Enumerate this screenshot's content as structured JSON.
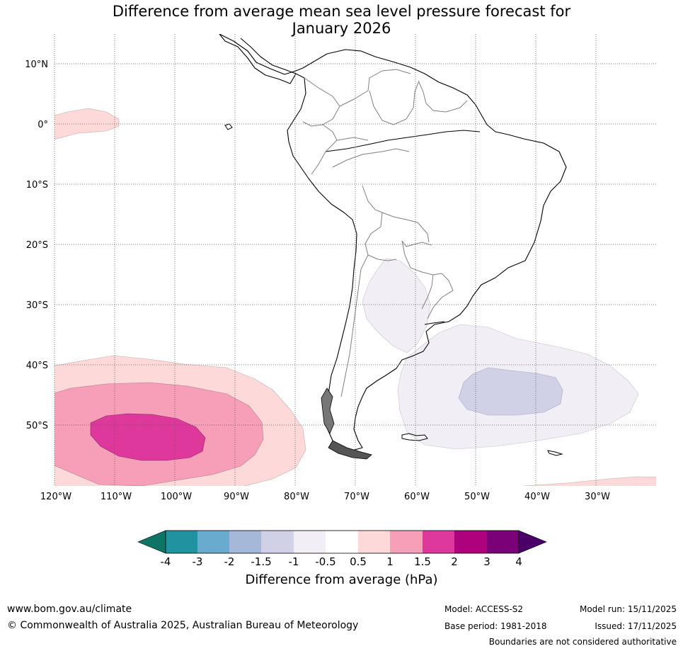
{
  "title_lines": [
    "Difference from average mean sea level pressure forecast for",
    "January 2026"
  ],
  "axes": {
    "lat_labels": [
      "10°N",
      "0°",
      "10°S",
      "20°S",
      "30°S",
      "40°S",
      "50°S"
    ],
    "lon_labels": [
      "120°W",
      "110°W",
      "100°W",
      "90°W",
      "80°W",
      "70°W",
      "60°W",
      "50°W",
      "40°W",
      "30°W"
    ]
  },
  "map_region": "South America and surrounding oceans",
  "colorbar": {
    "title": "Difference from average (hPa)",
    "tick_labels": [
      "-4",
      "-3",
      "-2",
      "-1.5",
      "-1",
      "-0.5",
      "0.5",
      "1",
      "1.5",
      "2",
      "3",
      "4"
    ],
    "colors": [
      "#0e7566",
      "#2093a0",
      "#69aacf",
      "#a6b8d7",
      "#d0d1e6",
      "#f1eef6",
      "#ffffff",
      "#fdd9d9",
      "#f79fb9",
      "#de389c",
      "#ae017e",
      "#7a0177",
      "#4a0066"
    ]
  },
  "footer": {
    "url": "www.bom.gov.au/climate",
    "copyright": "© Commonwealth of Australia 2025, Australian Bureau of Meteorology",
    "model": "Model: ACCESS-S2",
    "base_period": "Base period: 1981-2018",
    "model_run": "Model run: 15/11/2025",
    "issued": "Issued: 17/11/2025",
    "disclaimer": "Boundaries are not considered authoritative"
  }
}
